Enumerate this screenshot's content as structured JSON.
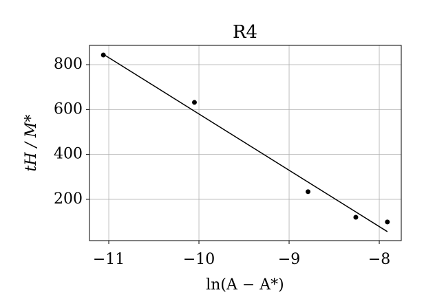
{
  "chart_data": {
    "type": "scatter",
    "title": "R4",
    "x_label": "ln(A − A*)",
    "y_label": "tH / M*",
    "xlim": [
      -11.214,
      -7.756
    ],
    "ylim": [
      16,
      886
    ],
    "xticks": [
      {
        "value": -11,
        "label": "−11"
      },
      {
        "value": -10,
        "label": "−10"
      },
      {
        "value": -9,
        "label": "−9"
      },
      {
        "value": -8,
        "label": "−8"
      }
    ],
    "yticks": [
      200,
      400,
      600,
      800
    ],
    "grid": true,
    "series": [
      {
        "type": "scatter",
        "color": "#000000",
        "x": [
          -11.06,
          -10.05,
          -8.79,
          -8.26,
          -7.91
        ],
        "values": [
          843,
          632,
          234,
          120,
          99
        ]
      },
      {
        "type": "line",
        "color": "#000000",
        "x": [
          -11.07,
          -7.91
        ],
        "values": [
          849,
          56
        ]
      }
    ]
  }
}
